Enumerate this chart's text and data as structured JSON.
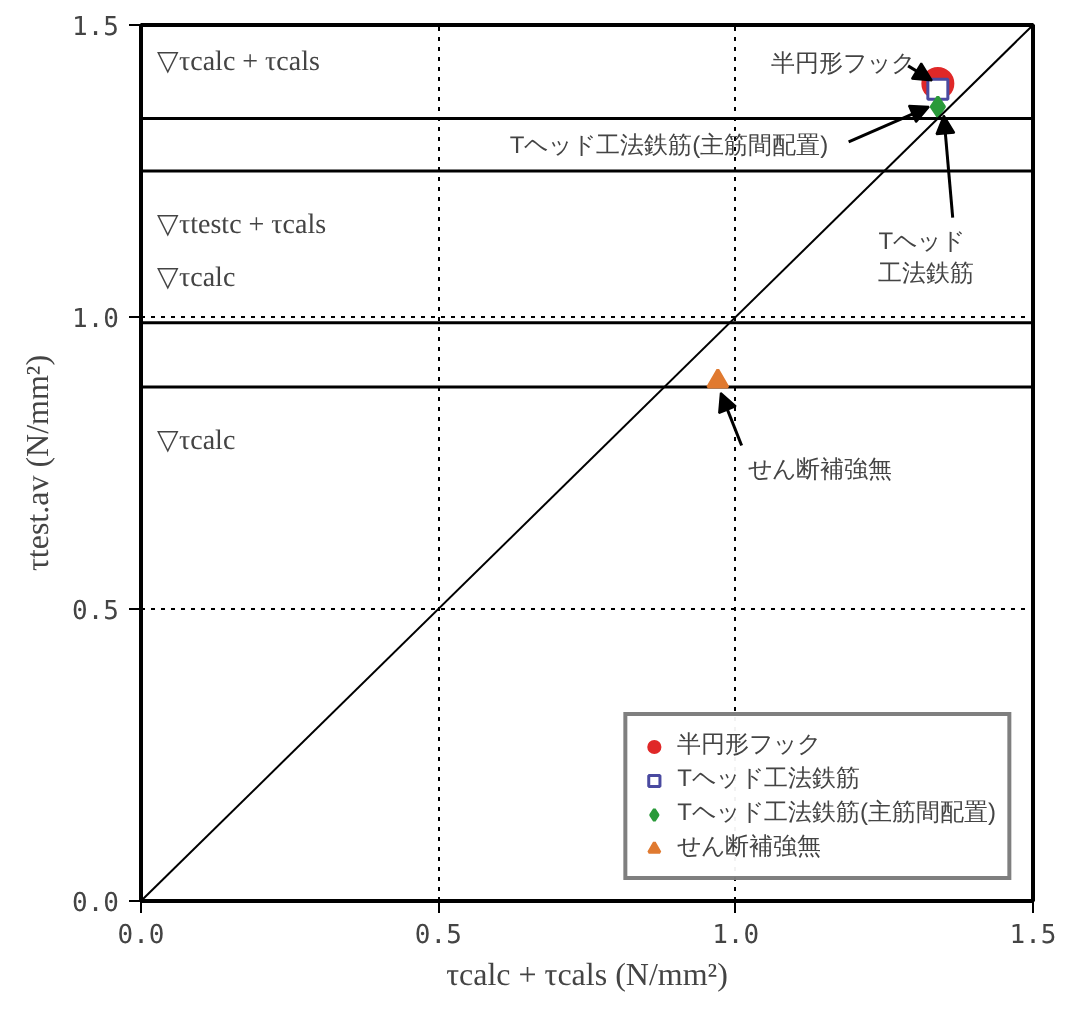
{
  "chart_data": {
    "type": "scatter",
    "xlabel": "τcalc + τcals (N/mm²)",
    "ylabel": "τtest.av (N/mm²)",
    "xlim": [
      0,
      1.5
    ],
    "ylim": [
      0,
      1.5
    ],
    "xticks": [
      {
        "value": 0,
        "label": "0.0"
      },
      {
        "value": 0.5,
        "label": "0.5"
      },
      {
        "value": 1,
        "label": "1.0"
      },
      {
        "value": 1.5,
        "label": "1.5"
      }
    ],
    "yticks": [
      {
        "value": 0,
        "label": "0.0"
      },
      {
        "value": 0.5,
        "label": "0.5"
      },
      {
        "value": 1,
        "label": "1.0"
      },
      {
        "value": 1.5,
        "label": "1.5"
      }
    ],
    "grid": true,
    "legend": "bottom right",
    "series": [
      {
        "name": "半円形フック",
        "color": "#e02828",
        "marker": "circle",
        "x": [
          1.34
        ],
        "values": [
          1.4
        ]
      },
      {
        "name": "Tヘッド工法鉄筋",
        "color": "#4a4aa0",
        "marker": "square",
        "x": [
          1.34
        ],
        "values": [
          1.39
        ]
      },
      {
        "name": "Tヘッド工法鉄筋(主筋間配置)",
        "color": "#2a9a3a",
        "marker": "diamond",
        "x": [
          1.34
        ],
        "values": [
          1.36
        ]
      },
      {
        "name": "せん断補強無",
        "color": "#e07a30",
        "marker": "triangle",
        "x": [
          0.97
        ],
        "values": [
          0.89
        ]
      },
      {
        "type": "line",
        "color": "#000000",
        "x": [
          0,
          1.5
        ],
        "values": [
          0,
          1.5
        ]
      }
    ],
    "ref_lines": [
      {
        "axis": "y",
        "value": 1.34,
        "label": "▽τcalc + τcals"
      },
      {
        "axis": "y",
        "value": 1.25,
        "label": "▽τtestc + τcals"
      },
      {
        "axis": "y",
        "value": 0.99,
        "label": "▽τcalc"
      },
      {
        "axis": "y",
        "value": 0.88,
        "label": "▽τcalc"
      }
    ],
    "annotations": [
      {
        "text": "半円形フック",
        "x": 1.33,
        "y": 1.405
      },
      {
        "text": "Tヘッド工法鉄筋(主筋間配置)",
        "x": 1.325,
        "y": 1.36
      },
      {
        "text": "Tヘッド工法鉄筋",
        "x": 1.35,
        "y": 1.345
      },
      {
        "text": "せん断補強無",
        "x": 0.975,
        "y": 0.87
      }
    ]
  }
}
